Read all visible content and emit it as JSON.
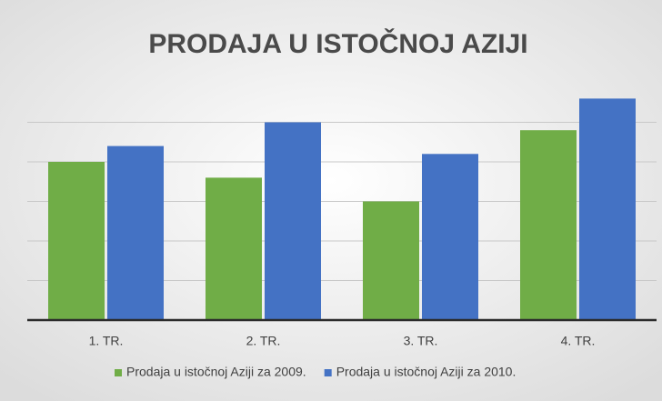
{
  "chart_data": {
    "type": "bar",
    "title": "PRODAJA U ISTOČNOJ AZIJI",
    "categories": [
      "1. TR.",
      "2. TR.",
      "3. TR.",
      "4. TR."
    ],
    "series": [
      {
        "name": "Prodaja u istočnoj Aziji za 2009.",
        "color": "#70ad47",
        "values": [
          4.0,
          3.6,
          3.0,
          4.8
        ]
      },
      {
        "name": "Prodaja u istočnoj Aziji za 2010.",
        "color": "#4472c4",
        "values": [
          4.4,
          5.0,
          4.2,
          5.6
        ]
      }
    ],
    "ylim": [
      0,
      6
    ],
    "yticks": [
      0,
      1,
      2,
      3,
      4,
      5
    ],
    "grid": true,
    "legend": "bottom"
  }
}
